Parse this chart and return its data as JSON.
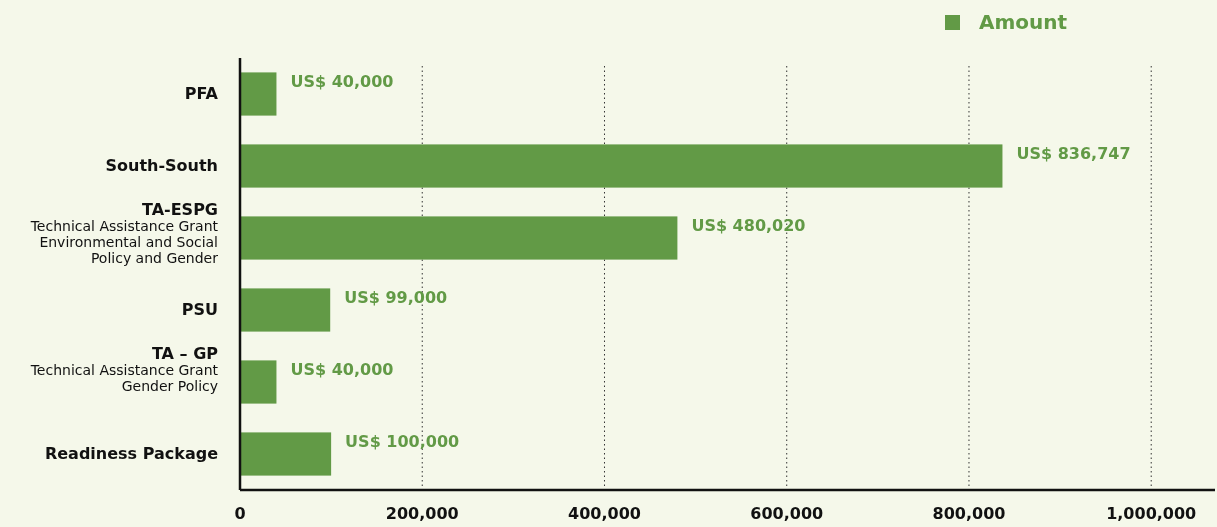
{
  "chart_data": {
    "type": "bar",
    "orientation": "horizontal",
    "categories": [
      "PFA",
      "South-South",
      "TA-ESPG\nTechnical Assistance Grant\nEnvironmental and Social\nPolicy and Gender",
      "PSU",
      "TA – GP\nTechnical Assistance Grant\nGender Policy",
      "Readiness Package"
    ],
    "series": [
      {
        "name": "Amount",
        "color": "#629a46",
        "values": [
          40000,
          836747,
          480020,
          99000,
          40000,
          100000
        ],
        "value_labels": [
          "US$ 40,000",
          "US$ 836,747",
          "US$ 480,020",
          "US$ 99,000",
          "US$ 40,000",
          "US$ 100,000"
        ]
      }
    ],
    "xlim": [
      0,
      1070000
    ],
    "xticks": [
      {
        "value": 0,
        "label": "0"
      },
      {
        "value": 200000,
        "label": "200,000"
      },
      {
        "value": 400000,
        "label": "400,000"
      },
      {
        "value": 600000,
        "label": "600,000"
      },
      {
        "value": 800000,
        "label": "800,000"
      },
      {
        "value": 1000000,
        "label": "1,000,000"
      }
    ],
    "grid": "x",
    "legend": "top right"
  }
}
